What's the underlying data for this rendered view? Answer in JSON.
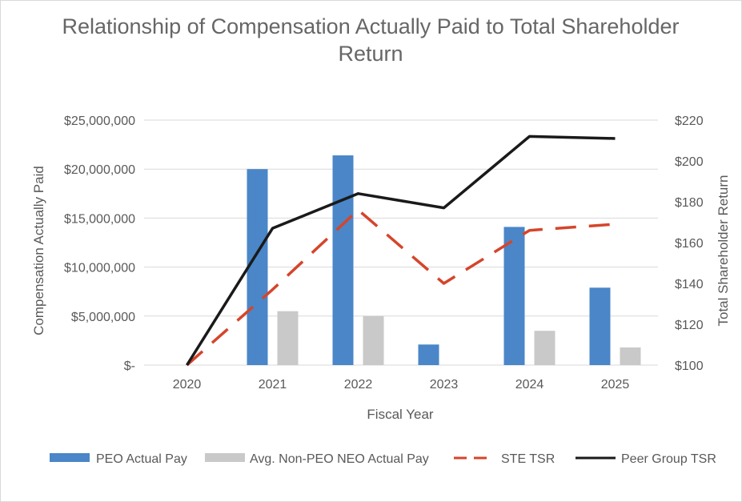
{
  "chart_data": {
    "type": "bar",
    "title_lines": [
      "Relationship of Compensation Actually Paid to Total Shareholder",
      "Return"
    ],
    "xlabel": "Fiscal Year",
    "ylabel": "Compensation Actually Paid",
    "y2label": "Total Shareholder Return",
    "categories": [
      "2020",
      "2021",
      "2022",
      "2023",
      "2024",
      "2025"
    ],
    "ylim": [
      0,
      25000000
    ],
    "y2lim": [
      100,
      220
    ],
    "yticks": [
      0,
      5000000,
      10000000,
      15000000,
      20000000,
      25000000
    ],
    "yticklabels": [
      "$-",
      "$5,000,000",
      "$10,000,000",
      "$15,000,000",
      "$20,000,000",
      "$25,000,000"
    ],
    "y2ticks": [
      100,
      120,
      140,
      160,
      180,
      200,
      220
    ],
    "y2ticklabels": [
      "$100",
      "$120",
      "$140",
      "$160",
      "$180",
      "$200",
      "$220"
    ],
    "grid": true,
    "legend_position": "bottom",
    "series": [
      {
        "name": "PEO Actual Pay",
        "kind": "bar",
        "axis": "left",
        "color": "#4a86c8",
        "values": [
          0,
          20000000,
          21400000,
          2100000,
          14100000,
          7900000
        ]
      },
      {
        "name": "Avg. Non-PEO NEO Actual Pay",
        "kind": "bar",
        "axis": "left",
        "color": "#c9c9c9",
        "values": [
          0,
          5500000,
          5000000,
          0,
          3500000,
          1800000
        ]
      },
      {
        "name": "STE TSR",
        "kind": "line",
        "axis": "right",
        "color": "#d5452b",
        "dash": true,
        "values": [
          100,
          137,
          176,
          140,
          166,
          169
        ]
      },
      {
        "name": "Peer Group TSR",
        "kind": "line",
        "axis": "right",
        "color": "#1a1a1a",
        "dash": false,
        "values": [
          100,
          167,
          184,
          177,
          212,
          211
        ]
      }
    ]
  }
}
